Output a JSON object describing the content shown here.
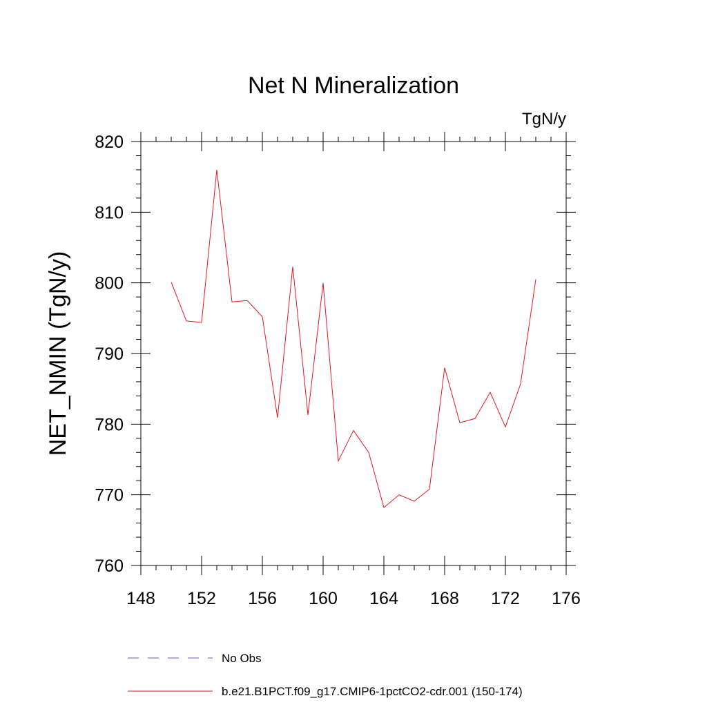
{
  "chart_data": {
    "type": "line",
    "title": "Net N Mineralization",
    "units": "TgN/y",
    "xlabel": "",
    "ylabel": "NET_NMIN  (TgN/y)",
    "xlim": [
      148,
      176
    ],
    "ylim": [
      760,
      820
    ],
    "xticks": [
      148,
      152,
      156,
      160,
      164,
      168,
      172,
      176
    ],
    "yticks": [
      760,
      770,
      780,
      790,
      800,
      810,
      820
    ],
    "series": [
      {
        "name": "b.e21.B1PCT.f09_g17.CMIP6-1pctCO2-cdr.001 (150-174)",
        "color": "#e8161e",
        "style": "solid",
        "x": [
          150,
          151,
          152,
          153,
          154,
          155,
          156,
          157,
          158,
          159,
          160,
          161,
          162,
          163,
          164,
          165,
          166,
          167,
          168,
          169,
          170,
          171,
          172,
          173,
          174
        ],
        "y": [
          800.1,
          794.6,
          794.4,
          816.0,
          797.3,
          797.5,
          795.2,
          780.9,
          802.3,
          781.3,
          800.0,
          774.8,
          779.1,
          776.0,
          768.2,
          770.0,
          769.1,
          770.8,
          788.0,
          780.2,
          780.8,
          784.5,
          779.6,
          785.7,
          800.5
        ]
      }
    ],
    "legend": [
      {
        "label": "No Obs",
        "color": "#5a5ad0",
        "style": "dashed"
      },
      {
        "label": "b.e21.B1PCT.f09_g17.CMIP6-1pctCO2-cdr.001 (150-174)",
        "color": "#e8161e",
        "style": "solid"
      }
    ],
    "legend_position": "bottom"
  }
}
